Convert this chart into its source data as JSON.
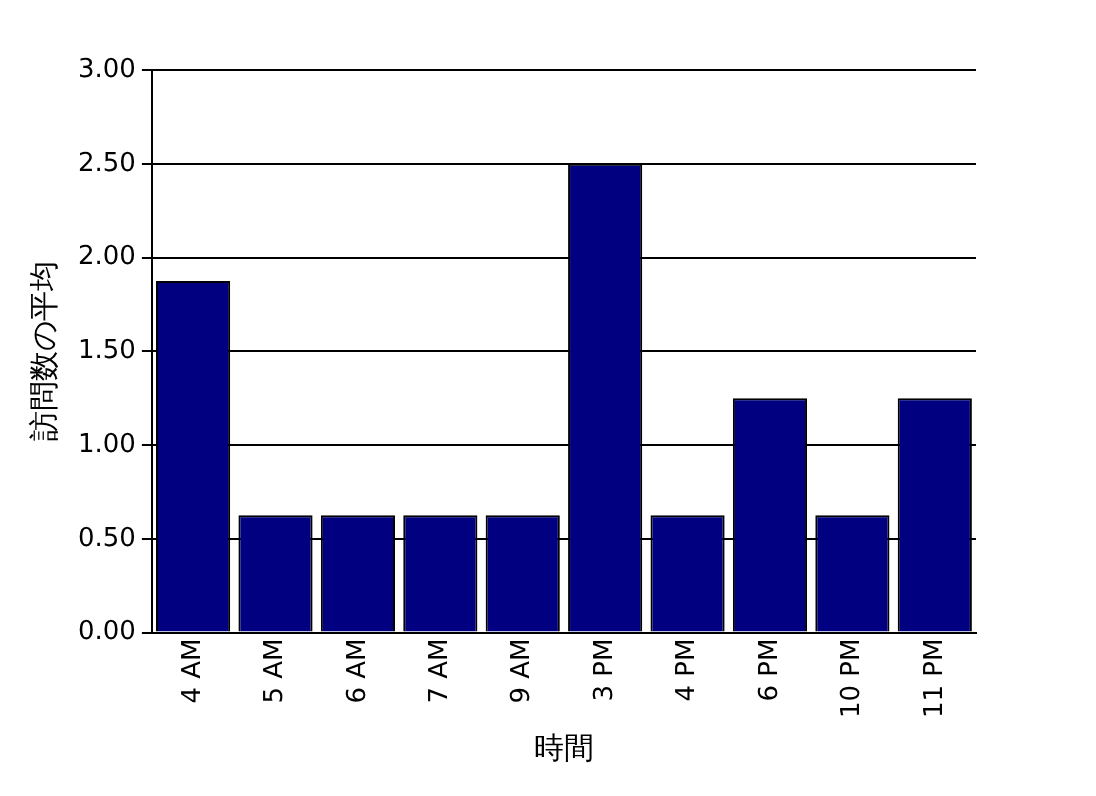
{
  "chart_data": {
    "type": "bar",
    "xlabel": "時間",
    "ylabel": "訪問数の平均",
    "categories": [
      "4 AM",
      "5 AM",
      "6 AM",
      "7 AM",
      "9 AM",
      "3 PM",
      "4 PM",
      "6 PM",
      "10 PM",
      "11 PM"
    ],
    "values": [
      1.875,
      0.625,
      0.625,
      0.625,
      0.625,
      2.5,
      0.625,
      1.25,
      0.625,
      1.25
    ],
    "color": "#000080",
    "ylim": [
      0,
      3
    ],
    "yticks": [
      {
        "value": 0,
        "label": "0.00"
      },
      {
        "value": 0.5,
        "label": "0.50"
      },
      {
        "value": 1,
        "label": "1.00"
      },
      {
        "value": 1.5,
        "label": "1.50"
      },
      {
        "value": 2,
        "label": "2.00"
      },
      {
        "value": 2.5,
        "label": "2.50"
      },
      {
        "value": 3,
        "label": "3.00"
      }
    ],
    "grid": "y"
  }
}
